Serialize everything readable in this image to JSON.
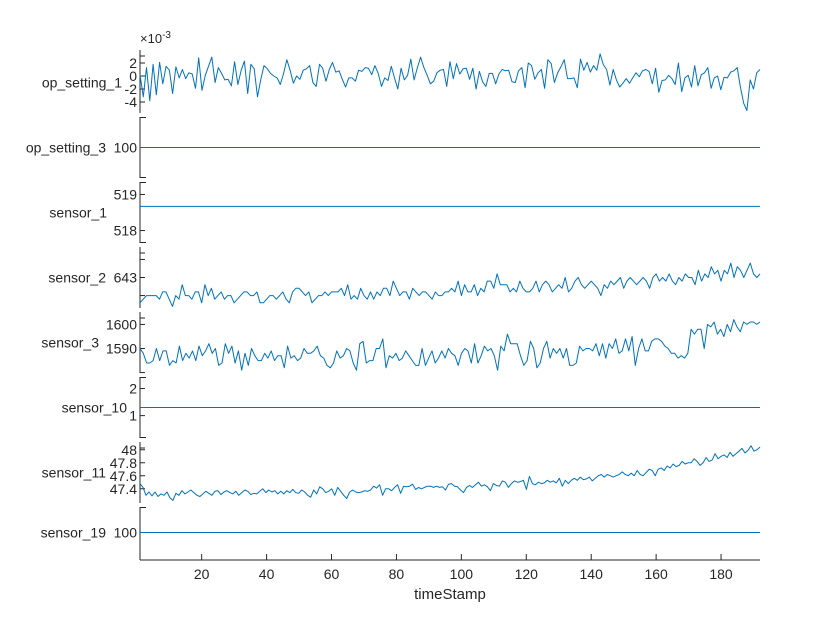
{
  "chart_data": {
    "type": "line",
    "title": "",
    "layout": "stacked",
    "xlabel": "timeStamp",
    "xlim": [
      1,
      192
    ],
    "xticks": [
      20,
      40,
      60,
      80,
      100,
      120,
      140,
      160,
      180
    ],
    "line_color": "#0072BD",
    "grid": false,
    "legend": null,
    "series": [
      {
        "name": "op_setting_1",
        "exponent_label": "×10",
        "exponent": "-3",
        "ylim": [
          -0.006,
          0.004
        ],
        "yticks": [
          -4,
          -2,
          0,
          2
        ],
        "ytick_scale": 0.001,
        "values_e3": [
          0.2,
          -3.2,
          1.3,
          -3.8,
          1.8,
          -2.9,
          2.1,
          -1.2,
          1.5,
          0.9,
          -2.7,
          1.4,
          -0.3,
          1.0,
          -0.4,
          0.5,
          0.3,
          -1.9,
          2.8,
          -2.2,
          0.1,
          1.5,
          2.9,
          -1.0,
          1.3,
          0.4,
          -0.6,
          -0.5,
          -1.5,
          2.2,
          -1.3,
          0.9,
          2.3,
          -2.7,
          1.8,
          1.1,
          -3.2,
          -0.6,
          1.6,
          1.1,
          0.4,
          0.0,
          -0.3,
          -1.3,
          0.4,
          2.5,
          0.9,
          -1.1,
          0.0,
          -0.5,
          0.9,
          1.1,
          1.6,
          -1.0,
          -1.6,
          1.8,
          1.2,
          -0.8,
          1.0,
          2.1,
          0.6,
          0.8,
          -0.5,
          -1.7,
          -0.3,
          -0.3,
          -0.8,
          0.9,
          0.7,
          1.3,
          1.2,
          0.2,
          1.6,
          0.4,
          -1.6,
          -0.3,
          -0.7,
          1.5,
          -0.3,
          -2.0,
          1.2,
          -0.6,
          0.1,
          2.6,
          -0.6,
          1.3,
          2.9,
          1.3,
          0.1,
          -1.2,
          -0.8,
          0.5,
          0.9,
          1.0,
          -1.6,
          2.2,
          -0.4,
          1.9,
          0.3,
          1.1,
          1.2,
          -0.5,
          1.2,
          -2.0,
          0.7,
          -0.9,
          -1.6,
          0.4,
          0.4,
          -1.2,
          0.3,
          1.0,
          0.8,
          0.9,
          -0.9,
          -1.0,
          0.8,
          1.3,
          -1.8,
          2.0,
          1.6,
          -0.5,
          0.5,
          1.0,
          -1.9,
          2.5,
          1.9,
          -1.0,
          0.5,
          1.4,
          2.5,
          -0.4,
          -0.4,
          -0.3,
          -1.8,
          2.6,
          0.9,
          2.1,
          0.6,
          1.6,
          0.9,
          3.4,
          1.7,
          1.0,
          -1.4,
          1.0,
          -0.6,
          -1.7,
          -1.1,
          -0.4,
          -1.1,
          -0.3,
          0.5,
          -0.1,
          0.8,
          1.0,
          0.7,
          -1.2,
          1.2,
          -2.5,
          -0.7,
          -0.6,
          0.1,
          -0.4,
          -1.3,
          2.0,
          -2.4,
          -0.3,
          0.1,
          -1.7,
          1.6,
          -1.5,
          0.2,
          0.5,
          1.3,
          -1.9,
          -0.3,
          0.0,
          -2.1,
          -0.2,
          -0.3,
          0.6,
          0.8,
          1.3,
          -1.7,
          -4.2,
          -5.3,
          -0.6,
          -2.0,
          0.5,
          1.0
        ]
      },
      {
        "name": "op_setting_3",
        "ylim": [
          0,
          200
        ],
        "yticks": [
          100
        ],
        "constant": 100
      },
      {
        "name": "sensor_1",
        "ylim": [
          517.6,
          519.4
        ],
        "yticks": [
          518,
          519
        ],
        "constant": 518.67
      },
      {
        "name": "sensor_2",
        "ylim": [
          642.1,
          643.9
        ],
        "yticks": [
          642.5,
          643,
          643.5
        ],
        "ytick_labels_visible": [
          "643"
        ],
        "trend": "increasing",
        "start_approx": 642.3,
        "end_approx": 643.3,
        "values": [
          642.3,
          642.4,
          642.5,
          642.5,
          642.5,
          642.5,
          642.4,
          642.6,
          642.6,
          642.4,
          642.2,
          642.5,
          642.4,
          642.8,
          642.5,
          642.5,
          642.4,
          642.6,
          642.6,
          642.3,
          642.8,
          642.5,
          642.7,
          642.4,
          642.5,
          642.6,
          642.4,
          642.5,
          642.5,
          642.3,
          642.4,
          642.5,
          642.6,
          642.6,
          642.5,
          642.5,
          642.6,
          642.3,
          642.3,
          642.4,
          642.5,
          642.5,
          642.4,
          642.5,
          642.6,
          642.4,
          642.3,
          642.6,
          642.7,
          642.7,
          642.6,
          642.5,
          642.6,
          642.3,
          642.4,
          642.5,
          642.5,
          642.6,
          642.5,
          642.6,
          642.6,
          642.6,
          642.7,
          642.5,
          642.8,
          642.4,
          642.5,
          642.4,
          642.7,
          642.5,
          642.4,
          642.6,
          642.4,
          642.6,
          642.5,
          642.7,
          642.7,
          642.5,
          642.9,
          642.7,
          642.5,
          642.6,
          642.6,
          642.4,
          642.7,
          642.6,
          642.5,
          642.6,
          642.6,
          642.5,
          642.4,
          642.6,
          642.5,
          642.5,
          642.6,
          642.6,
          642.7,
          642.6,
          642.9,
          642.5,
          642.8,
          642.6,
          642.6,
          642.8,
          642.5,
          642.7,
          642.6,
          642.9,
          642.9,
          642.7,
          643.1,
          642.8,
          642.8,
          642.8,
          642.6,
          642.7,
          642.6,
          642.9,
          642.7,
          642.6,
          642.6,
          642.7,
          642.9,
          642.6,
          642.8,
          642.9,
          642.8,
          642.6,
          642.7,
          642.8,
          642.7,
          643.0,
          642.6,
          642.7,
          642.9,
          643.0,
          642.8,
          642.7,
          642.8,
          642.9,
          642.8,
          642.7,
          642.5,
          642.8,
          642.7,
          642.9,
          642.8,
          642.9,
          643.0,
          642.7,
          642.9,
          643.0,
          642.9,
          642.8,
          642.9,
          643.0,
          642.9,
          642.7,
          643.0,
          643.1,
          642.9,
          643.0,
          642.9,
          643.1,
          642.9,
          642.8,
          643.0,
          642.9,
          643.1,
          643.0,
          643.0,
          642.8,
          643.2,
          642.9,
          643.1,
          643.0,
          643.3,
          643.1,
          643.2,
          642.9,
          643.2,
          643.1,
          643.4,
          643.0,
          643.3,
          643.2,
          643.0,
          643.2,
          643.4,
          643.1,
          643.0,
          643.1
        ]
      },
      {
        "name": "sensor_3",
        "ylim": [
          1579,
          1606
        ],
        "yticks": [
          1580,
          1590,
          1600
        ],
        "ytick_labels_visible": [
          "1590",
          "1600"
        ],
        "trend": "increasing",
        "start_approx": 1590,
        "end_approx": 1601,
        "values": [
          1590,
          1588,
          1584,
          1584,
          1585,
          1590,
          1585,
          1589,
          1589,
          1583,
          1585,
          1584,
          1591,
          1585,
          1588,
          1586,
          1589,
          1585,
          1591,
          1587,
          1589,
          1592,
          1588,
          1590,
          1583,
          1584,
          1592,
          1588,
          1591,
          1584,
          1589,
          1581,
          1588,
          1583,
          1590,
          1587,
          1585,
          1585,
          1588,
          1586,
          1589,
          1585,
          1587,
          1587,
          1582,
          1591,
          1586,
          1587,
          1585,
          1586,
          1590,
          1588,
          1588,
          1589,
          1591,
          1587,
          1586,
          1583,
          1582,
          1584,
          1589,
          1586,
          1587,
          1590,
          1589,
          1584,
          1581,
          1592,
          1593,
          1584,
          1585,
          1585,
          1590,
          1590,
          1594,
          1582,
          1587,
          1586,
          1588,
          1585,
          1586,
          1589,
          1587,
          1585,
          1583,
          1583,
          1590,
          1583,
          1586,
          1589,
          1584,
          1586,
          1589,
          1586,
          1590,
          1588,
          1587,
          1583,
          1588,
          1590,
          1589,
          1584,
          1592,
          1584,
          1587,
          1591,
          1589,
          1590,
          1587,
          1581,
          1591,
          1589,
          1596,
          1592,
          1592,
          1592,
          1587,
          1583,
          1585,
          1593,
          1590,
          1582,
          1584,
          1590,
          1593,
          1586,
          1590,
          1588,
          1590,
          1586,
          1590,
          1583,
          1583,
          1584,
          1591,
          1589,
          1590,
          1590,
          1589,
          1592,
          1587,
          1592,
          1586,
          1592,
          1590,
          1594,
          1588,
          1589,
          1594,
          1589,
          1595,
          1583,
          1590,
          1594,
          1589,
          1589,
          1593,
          1594,
          1594,
          1593,
          1591,
          1590,
          1588,
          1588,
          1586,
          1587,
          1586,
          1588,
          1598,
          1596,
          1598,
          1598,
          1590,
          1600,
          1599,
          1601,
          1596,
          1598,
          1595,
          1600,
          1597,
          1602,
          1599,
          1597,
          1601,
          1600,
          1601,
          1601,
          1600,
          1601
        ]
      },
      {
        "name": "sensor_10",
        "ylim": [
          0.1,
          2.5
        ],
        "yticks": [
          1,
          2
        ],
        "constant": 1.3
      },
      {
        "name": "sensor_11",
        "ylim": [
          47.15,
          48.15
        ],
        "yticks": [
          47.4,
          47.6,
          47.8,
          48
        ],
        "trend": "increasing",
        "start_approx": 47.5,
        "end_approx": 48.0,
        "values": [
          47.48,
          47.42,
          47.3,
          47.35,
          47.29,
          47.35,
          47.28,
          47.32,
          47.3,
          47.35,
          47.26,
          47.22,
          47.33,
          47.3,
          47.37,
          47.32,
          47.35,
          47.38,
          47.34,
          47.3,
          47.28,
          47.32,
          47.36,
          47.33,
          47.3,
          47.36,
          47.37,
          47.31,
          47.35,
          47.37,
          47.34,
          47.32,
          47.36,
          47.3,
          47.34,
          47.38,
          47.36,
          47.31,
          47.33,
          47.32,
          47.36,
          47.4,
          47.34,
          47.38,
          47.35,
          47.37,
          47.32,
          47.36,
          47.32,
          47.37,
          47.34,
          47.39,
          47.34,
          47.33,
          47.38,
          47.35,
          47.3,
          47.27,
          47.38,
          47.32,
          47.43,
          47.4,
          47.34,
          47.36,
          47.4,
          47.3,
          47.42,
          47.36,
          47.3,
          47.25,
          47.35,
          47.38,
          47.35,
          47.34,
          47.35,
          47.37,
          47.36,
          47.38,
          47.44,
          47.41,
          47.46,
          47.3,
          47.4,
          47.4,
          47.37,
          47.42,
          47.46,
          47.33,
          47.44,
          47.43,
          47.44,
          47.47,
          47.39,
          47.42,
          47.4,
          47.42,
          47.44,
          47.44,
          47.42,
          47.44,
          47.42,
          47.43,
          47.38,
          47.47,
          47.48,
          47.44,
          47.43,
          47.38,
          47.34,
          47.42,
          47.45,
          47.42,
          47.46,
          47.5,
          47.44,
          47.46,
          47.43,
          47.37,
          47.48,
          47.45,
          47.44,
          47.52,
          47.5,
          47.42,
          47.48,
          47.52,
          47.5,
          47.51,
          47.53,
          47.39,
          47.59,
          47.48,
          47.46,
          47.5,
          47.48,
          47.49,
          47.53,
          47.5,
          47.52,
          47.49,
          47.56,
          47.44,
          47.53,
          47.48,
          47.53,
          47.56,
          47.53,
          47.58,
          47.54,
          47.55,
          47.58,
          47.52,
          47.56,
          47.6,
          47.62,
          47.58,
          47.62,
          47.6,
          47.58,
          47.6,
          47.62,
          47.66,
          47.62,
          47.6,
          47.64,
          47.6,
          47.68,
          47.62,
          47.6,
          47.65,
          47.7,
          47.68,
          47.6,
          47.7,
          47.72,
          47.68,
          47.75,
          47.72,
          47.78,
          47.74,
          47.76,
          47.82,
          47.78,
          47.8,
          47.8,
          47.86,
          47.82,
          47.76,
          47.8,
          47.88,
          47.82,
          47.84,
          47.94,
          47.86,
          47.9,
          47.92,
          47.88,
          47.96,
          47.9,
          47.94,
          47.98,
          48.02,
          47.95,
          47.99,
          48.06,
          47.98,
          48.0,
          48.04
        ]
      },
      {
        "name": "sensor_19",
        "ylim": [
          0,
          200
        ],
        "yticks": [
          100
        ],
        "constant": 100
      }
    ]
  }
}
